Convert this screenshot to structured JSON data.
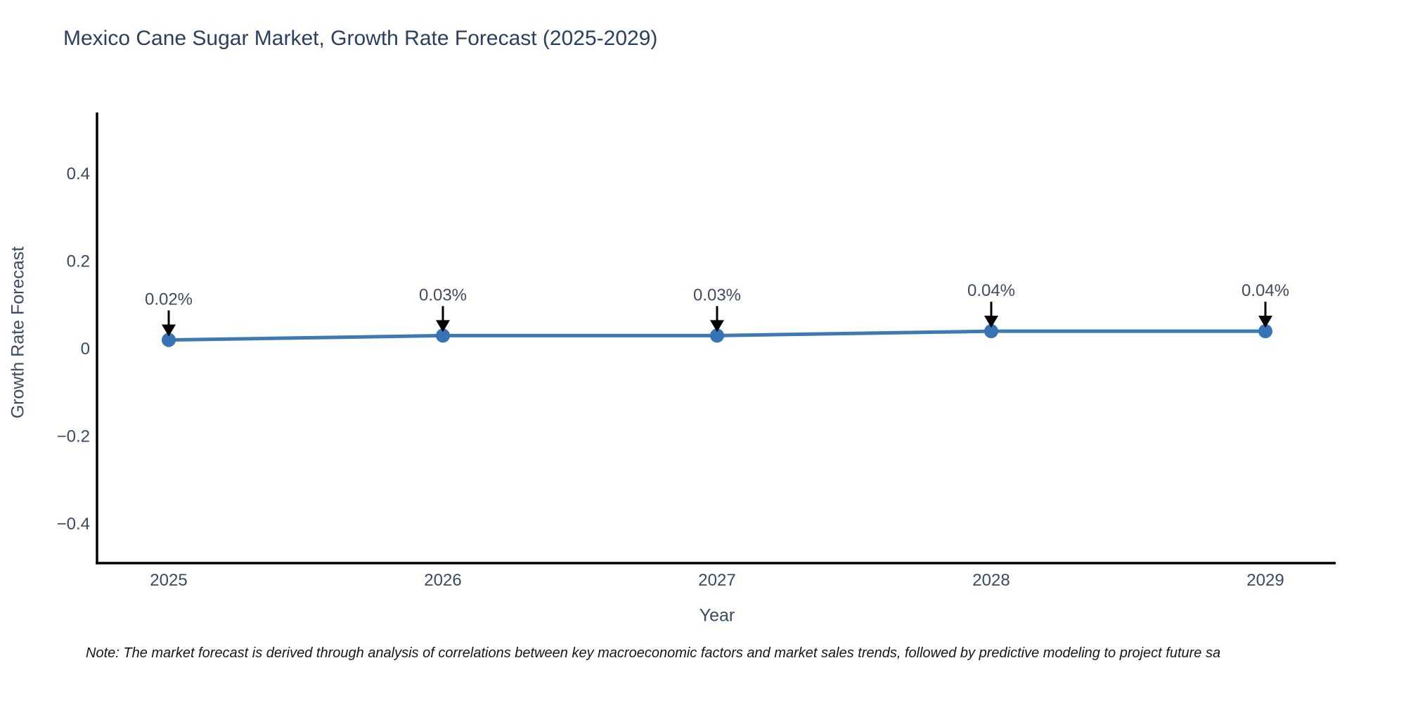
{
  "page": {
    "background": "#ffffff"
  },
  "chart_data": {
    "type": "line",
    "title": "Mexico Cane Sugar Market, Growth Rate Forecast (2025-2029)",
    "xlabel": "Year",
    "ylabel": "Growth Rate Forecast",
    "categories": [
      "2025",
      "2026",
      "2027",
      "2028",
      "2029"
    ],
    "series": [
      {
        "name": "Growth Rate Forecast",
        "values": [
          0.02,
          0.03,
          0.03,
          0.04,
          0.04
        ]
      }
    ],
    "point_labels": [
      "0.02%",
      "0.03%",
      "0.03%",
      "0.04%",
      "0.04%"
    ],
    "yticks": [
      0.4,
      0.2,
      0,
      -0.2,
      -0.4
    ],
    "ylim": [
      -0.49,
      0.54
    ],
    "grid": false,
    "legend": false,
    "colors": {
      "line": "#3f79b2",
      "marker": "#3674b5",
      "axis": "#000000",
      "title_text": "#2b3f5e",
      "label_text": "#3a4a63",
      "annotation_text": "#414c5e",
      "annotation_arrow": "#000000"
    }
  },
  "note": {
    "text": "Note: The market forecast is derived through analysis of correlations between key macroeconomic factors and market sales trends, followed by predictive modeling to project future sa"
  }
}
